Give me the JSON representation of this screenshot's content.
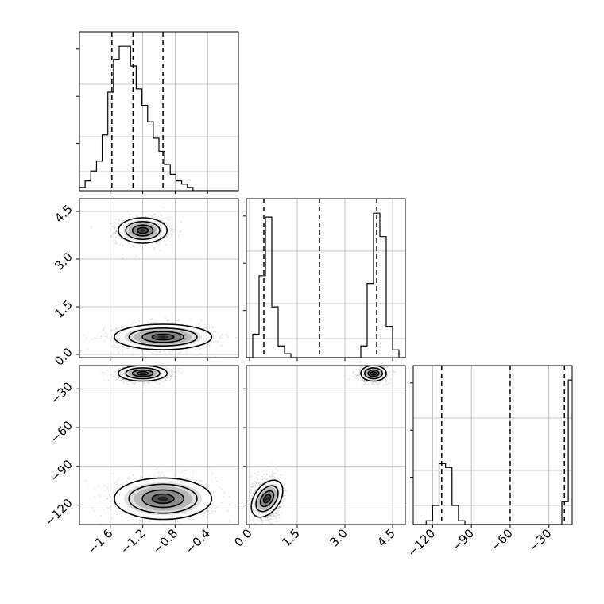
{
  "chart_data": {
    "type": "scatter",
    "subtype": "corner-plot",
    "grid": true,
    "parameters": [
      {
        "range": [
          -1.98,
          -0.02
        ],
        "ticks": [
          -1.6,
          -1.2,
          -0.8,
          -0.4
        ],
        "tick_labels": [
          "−1.6",
          "−1.2",
          "−0.8",
          "−0.4"
        ],
        "quantiles": [
          -1.58,
          -1.32,
          -0.95
        ]
      },
      {
        "range": [
          -0.1,
          4.9
        ],
        "ticks": [
          0.0,
          1.5,
          3.0,
          4.5
        ],
        "tick_labels": [
          "0.0",
          "1.5",
          "3.0",
          "4.5"
        ],
        "quantiles": [
          0.45,
          2.2,
          4.0
        ]
      },
      {
        "range": [
          -135,
          -12
        ],
        "ticks": [
          -120,
          -90,
          -60,
          -30
        ],
        "tick_labels": [
          "−120",
          "−90",
          "−60",
          "−30"
        ],
        "quantiles": [
          -113,
          -60,
          -18
        ]
      }
    ],
    "histograms": [
      {
        "param": 0,
        "bin_edges_start": -1.98,
        "bin_width": 0.07,
        "counts": [
          1,
          3,
          6,
          9,
          17,
          30,
          40,
          44,
          44,
          38,
          31,
          26,
          21,
          16,
          12,
          8,
          5,
          3,
          2,
          1,
          0,
          0,
          0,
          0,
          0,
          0,
          0,
          0
        ]
      },
      {
        "param": 1,
        "bin_edges_start": -0.1,
        "bin_width": 0.2,
        "counts": [
          0,
          6,
          21,
          36,
          13,
          3,
          1,
          0,
          0,
          0,
          0,
          0,
          0,
          0,
          0,
          0,
          0,
          0,
          3,
          19,
          37,
          31,
          8,
          2,
          0
        ]
      },
      {
        "param": 2,
        "bin_edges_start": -135,
        "bin_width": 5,
        "counts": [
          0,
          0,
          1,
          5,
          16,
          15,
          5,
          1,
          0,
          0,
          0,
          0,
          0,
          0,
          0,
          0,
          0,
          0,
          0,
          0,
          0,
          0,
          0,
          6,
          38,
          6
        ]
      }
    ],
    "modes": [
      {
        "means": [
          -1.2,
          3.9,
          -18
        ],
        "sigmas": [
          0.15,
          0.2,
          3
        ],
        "weight": 0.5
      },
      {
        "means": [
          -0.95,
          0.55,
          -115
        ],
        "sigmas": [
          0.3,
          0.2,
          8
        ],
        "weight": 0.5
      }
    ]
  }
}
